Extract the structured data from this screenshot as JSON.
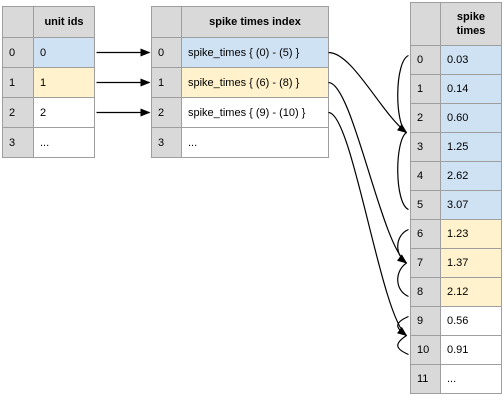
{
  "unit_table": {
    "header": "unit ids",
    "rows": [
      {
        "index": "0",
        "value": "0",
        "fill": "blue"
      },
      {
        "index": "1",
        "value": "1",
        "fill": "yellow"
      },
      {
        "index": "2",
        "value": "2",
        "fill": "white"
      },
      {
        "index": "3",
        "value": "...",
        "fill": "white"
      }
    ]
  },
  "index_table": {
    "header": "spike times index",
    "rows": [
      {
        "index": "0",
        "value": "spike_times { (0) - (5) }",
        "fill": "blue"
      },
      {
        "index": "1",
        "value": "spike_times { (6) - (8) }",
        "fill": "yellow"
      },
      {
        "index": "2",
        "value": "spike_times { (9) - (10) }",
        "fill": "white"
      },
      {
        "index": "3",
        "value": "...",
        "fill": "white"
      }
    ]
  },
  "times_table": {
    "header": "spike\ntimes",
    "rows": [
      {
        "index": "0",
        "value": "0.03",
        "fill": "blue"
      },
      {
        "index": "1",
        "value": "0.14",
        "fill": "blue"
      },
      {
        "index": "2",
        "value": "0.60",
        "fill": "blue"
      },
      {
        "index": "3",
        "value": "1.25",
        "fill": "blue"
      },
      {
        "index": "4",
        "value": "2.62",
        "fill": "blue"
      },
      {
        "index": "5",
        "value": "3.07",
        "fill": "blue"
      },
      {
        "index": "6",
        "value": "1.23",
        "fill": "yellow"
      },
      {
        "index": "7",
        "value": "1.37",
        "fill": "yellow"
      },
      {
        "index": "8",
        "value": "2.12",
        "fill": "yellow"
      },
      {
        "index": "9",
        "value": "0.56",
        "fill": "white"
      },
      {
        "index": "10",
        "value": "0.91",
        "fill": "white"
      },
      {
        "index": "11",
        "value": "...",
        "fill": "white"
      }
    ]
  },
  "colors": {
    "blue": "#cfe2f3",
    "yellow": "#fff2cc",
    "white": "#ffffff",
    "header_gray": "#d9d9d9",
    "border": "#9e9e9e",
    "arrow": "#000000"
  },
  "links": [
    {
      "from_unit_row": 0,
      "to_index_row": 0
    },
    {
      "from_unit_row": 1,
      "to_index_row": 1
    },
    {
      "from_unit_row": 2,
      "to_index_row": 2
    }
  ],
  "ranges": [
    {
      "index_row": 0,
      "first": 0,
      "last": 5
    },
    {
      "index_row": 1,
      "first": 6,
      "last": 8
    },
    {
      "index_row": 2,
      "first": 9,
      "last": 10
    }
  ]
}
